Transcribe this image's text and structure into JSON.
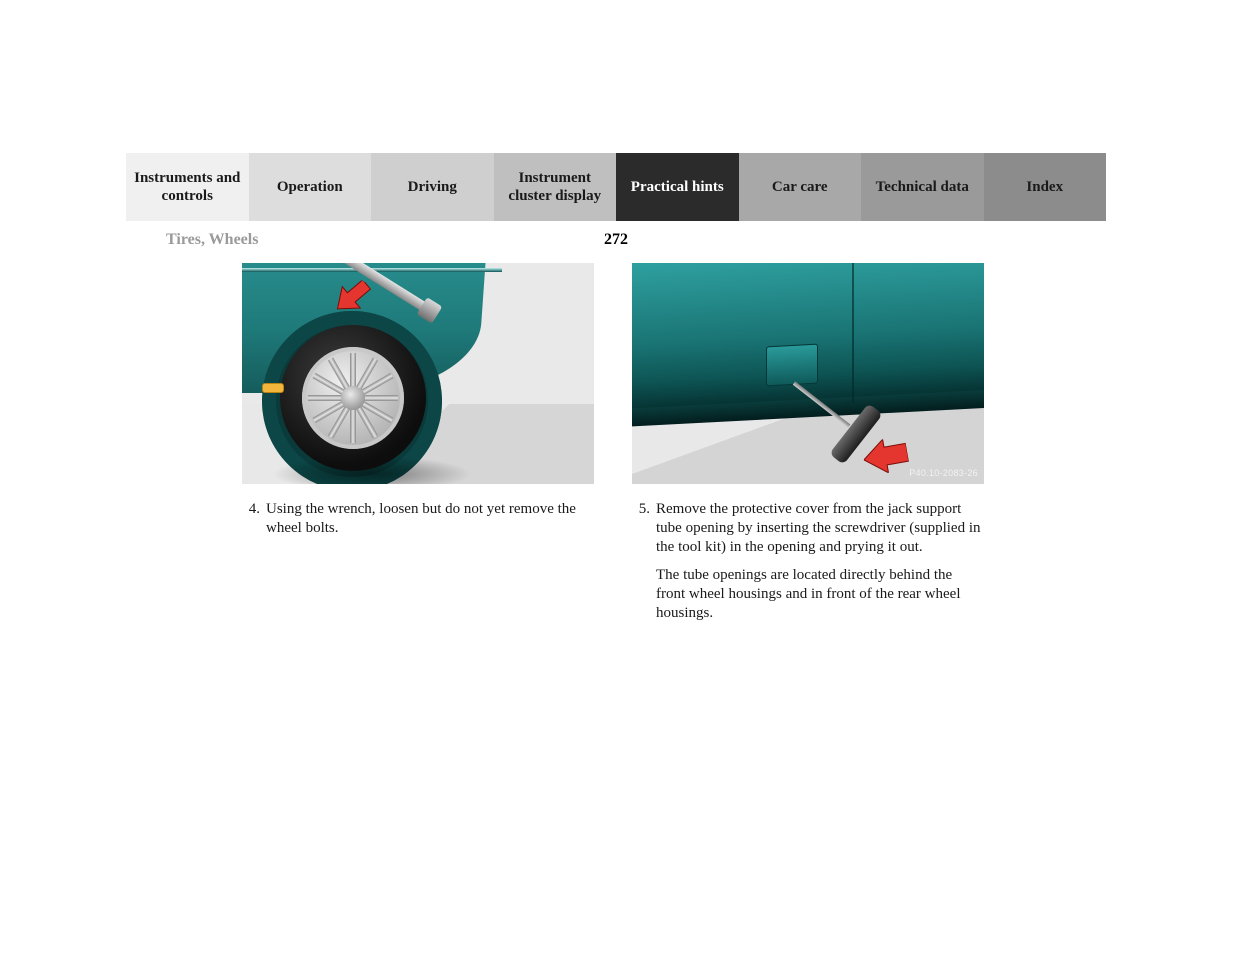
{
  "tabs": [
    {
      "label": "Instruments and controls",
      "bg": "#f0f0f0",
      "active": false
    },
    {
      "label": "Operation",
      "bg": "#dddddd",
      "active": false
    },
    {
      "label": "Driving",
      "bg": "#cfcfcf",
      "active": false
    },
    {
      "label": "Instrument cluster display",
      "bg": "#bfbfbf",
      "active": false
    },
    {
      "label": "Practical hints",
      "bg": "#2b2b2b",
      "active": true
    },
    {
      "label": "Car care",
      "bg": "#a8a8a8",
      "active": false
    },
    {
      "label": "Technical data",
      "bg": "#9a9a9a",
      "active": false
    },
    {
      "label": "Index",
      "bg": "#8c8c8c",
      "active": false
    }
  ],
  "section_title": "Tires, Wheels",
  "page_number": "272",
  "left": {
    "step_number": "4.",
    "step_text": "Using the wrench, loosen but do not yet remove the wheel bolts.",
    "car_color_top": "#2b9494",
    "car_color_bottom": "#155c5c",
    "arrow_color": "#e4352e"
  },
  "right": {
    "step_number": "5.",
    "step_text_1": "Remove the protective cover from the jack support tube opening by inserting the screwdriver (supplied in the tool kit) in the opening and prying it out.",
    "step_text_2": "The tube openings are located directly behind the front wheel housings and in front of the rear wheel housings.",
    "figure_code": "P40.10-2083-26",
    "car_color_top": "#2fa0a0",
    "car_color_bottom": "#052f2f",
    "arrow_color": "#e4352e"
  },
  "colors": {
    "tab_text": "#1a1a1a",
    "tab_text_active": "#ffffff",
    "section_title": "#9a9a9a",
    "body_text": "#1a1a1a",
    "ground_light": "#e8e8e8",
    "ground_dark": "#d4d4d4"
  },
  "typography": {
    "tab_fontsize_pt": 11,
    "section_fontsize_pt": 12,
    "body_fontsize_pt": 11,
    "font_family": "Georgia / serif"
  }
}
